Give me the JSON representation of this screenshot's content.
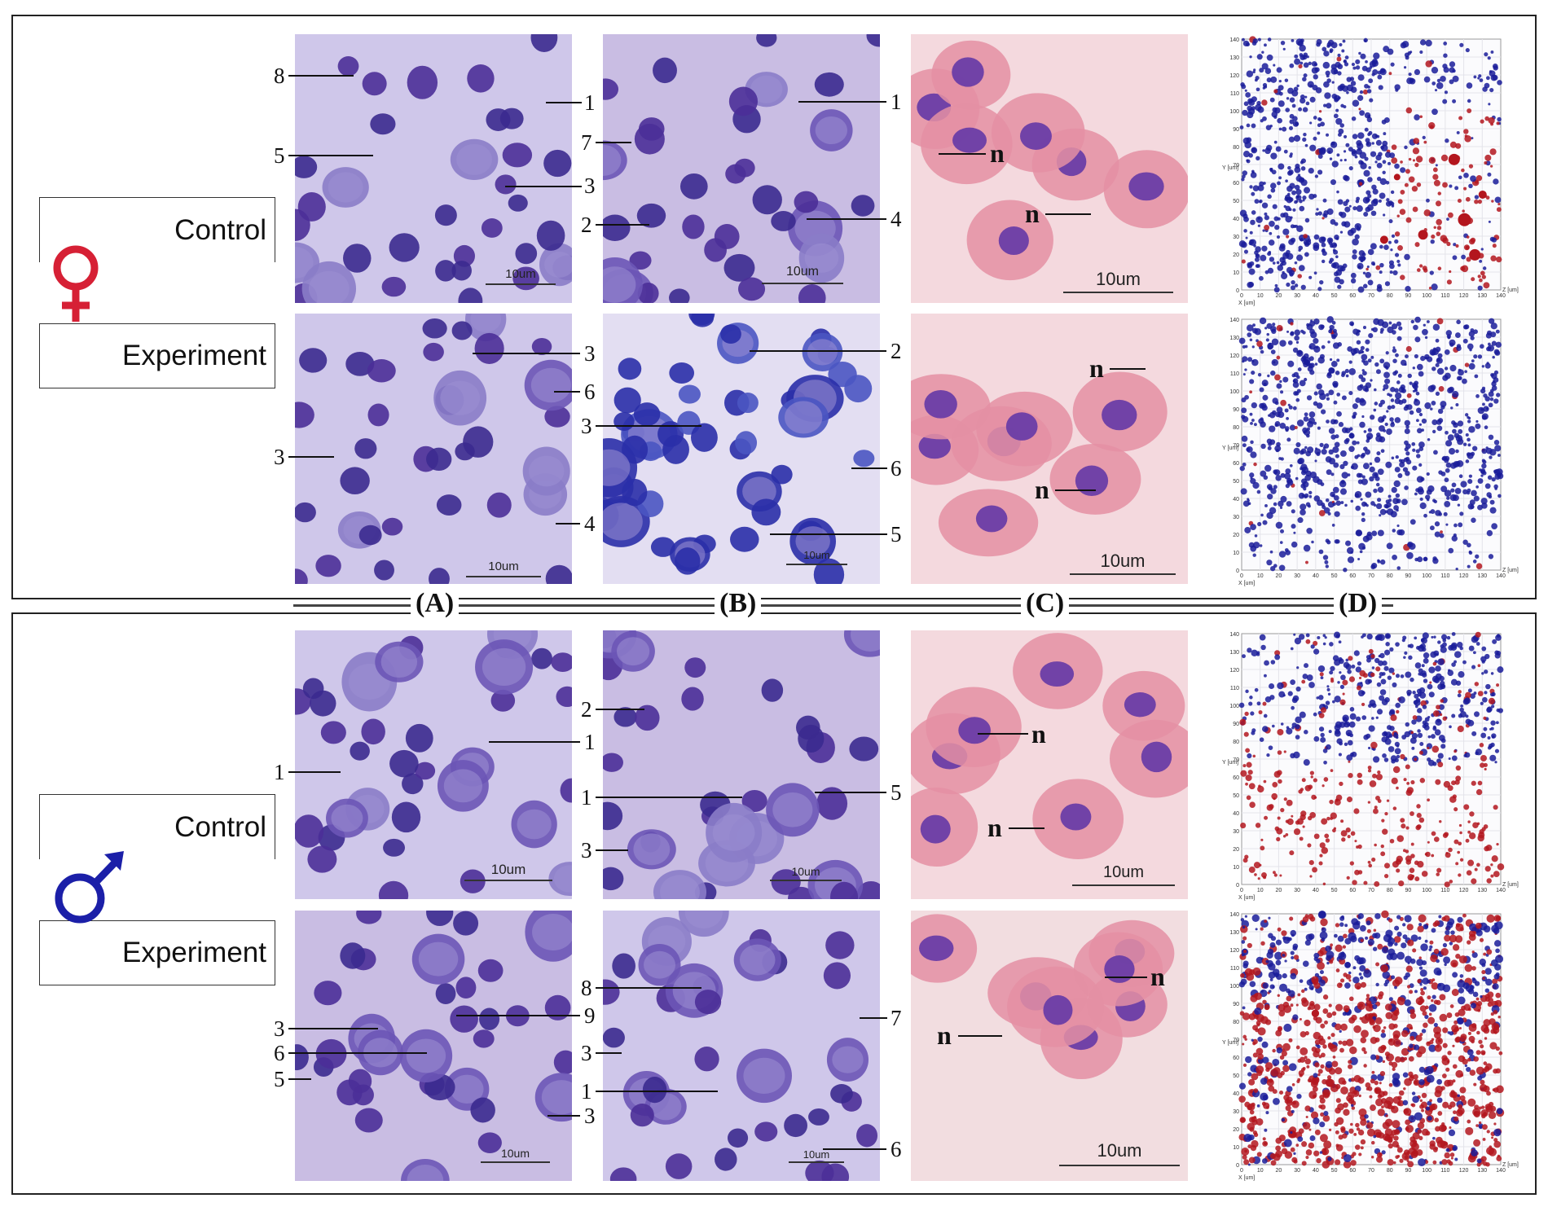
{
  "row_labels": {
    "control": "Control",
    "experiment": "Experiment"
  },
  "symbols": {
    "female": "♀",
    "male": "♂",
    "female_color": "#d62035",
    "male_color": "#1b1fa8"
  },
  "column_letters": [
    "(A)",
    "(B)",
    "(C)",
    "(D)"
  ],
  "scale_text": "10um",
  "callouts": {
    "fc_a": [
      "8",
      "1",
      "5",
      "3"
    ],
    "fc_b": [
      "1",
      "7",
      "2",
      "4"
    ],
    "fe_a": [
      "3",
      "6",
      "3",
      "4"
    ],
    "fe_b": [
      "2",
      "3",
      "6",
      "5"
    ],
    "mc_a": [
      "1",
      "1"
    ],
    "mc_b": [
      "2",
      "1",
      "5",
      "3"
    ],
    "me_a": [
      "3",
      "9",
      "6",
      "5",
      "3"
    ],
    "me_b": [
      "8",
      "7",
      "3",
      "1",
      "6"
    ],
    "nucleus": "n"
  },
  "plot_axis_labels": {
    "y": "Y [um]",
    "z": "Z [um]",
    "x": "X [um]",
    "ticks": [
      "0",
      "10",
      "20",
      "30",
      "40",
      "50",
      "60",
      "70",
      "80",
      "90",
      "100",
      "110",
      "120",
      "130",
      "140"
    ]
  },
  "colors": {
    "stain_bg_purple": "#cfc3e6",
    "nucleus_dark": "#3b2a8f",
    "pink_bg": "#f3c9d2",
    "pink_cell": "#e79aab",
    "blue_dot": "#1a1c9a",
    "red_dot": "#b3161e"
  }
}
